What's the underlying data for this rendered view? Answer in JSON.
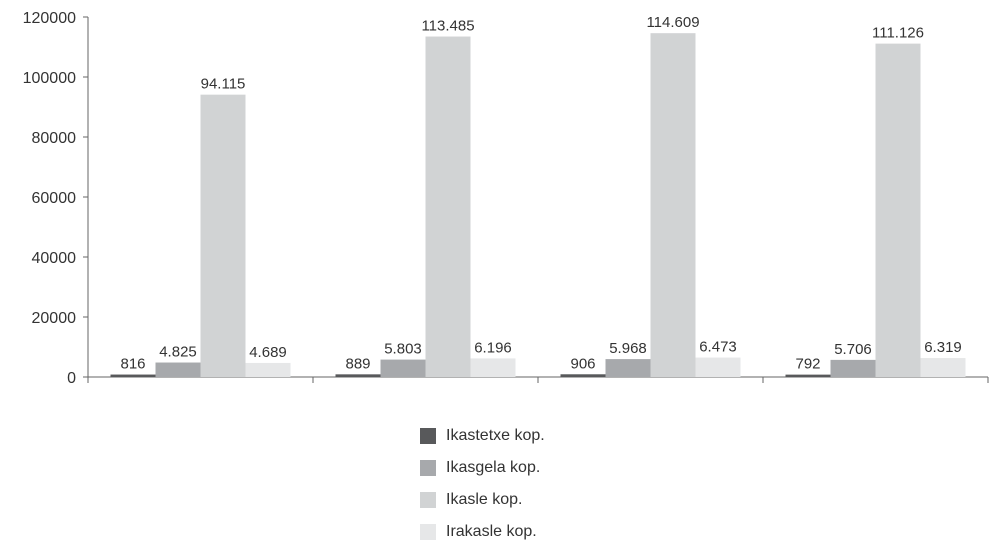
{
  "chart_data": {
    "type": "bar",
    "title": "",
    "xlabel": "",
    "ylabel": "",
    "categories": [
      "",
      "",
      "",
      ""
    ],
    "ylim": [
      0,
      120000
    ],
    "yticks": [
      0,
      20000,
      40000,
      60000,
      80000,
      100000,
      120000
    ],
    "ytick_labels": [
      "0",
      "20000",
      "40000",
      "60000",
      "80000",
      "100000",
      "120000"
    ],
    "grid": false,
    "legend_position": "bottom-center",
    "series": [
      {
        "name": "Ikastetxe kop.",
        "color": "#58595b",
        "values": [
          816,
          889,
          906,
          792
        ],
        "labels": [
          "816",
          "889",
          "906",
          "792"
        ]
      },
      {
        "name": "Ikasgela kop.",
        "color": "#a7a9ac",
        "values": [
          4825,
          5803,
          5968,
          5706
        ],
        "labels": [
          "4.825",
          "5.803",
          "5.968",
          "5.706"
        ]
      },
      {
        "name": "Ikasle kop.",
        "color": "#d1d3d4",
        "values": [
          94115,
          113485,
          114609,
          111126
        ],
        "labels": [
          "94.115",
          "113.485",
          "114.609",
          "111.126"
        ]
      },
      {
        "name": "Irakasle kop.",
        "color": "#e6e7e8",
        "values": [
          4689,
          6196,
          6473,
          6319
        ],
        "labels": [
          "4.689",
          "6.196",
          "6.473",
          "6.319"
        ]
      }
    ]
  }
}
